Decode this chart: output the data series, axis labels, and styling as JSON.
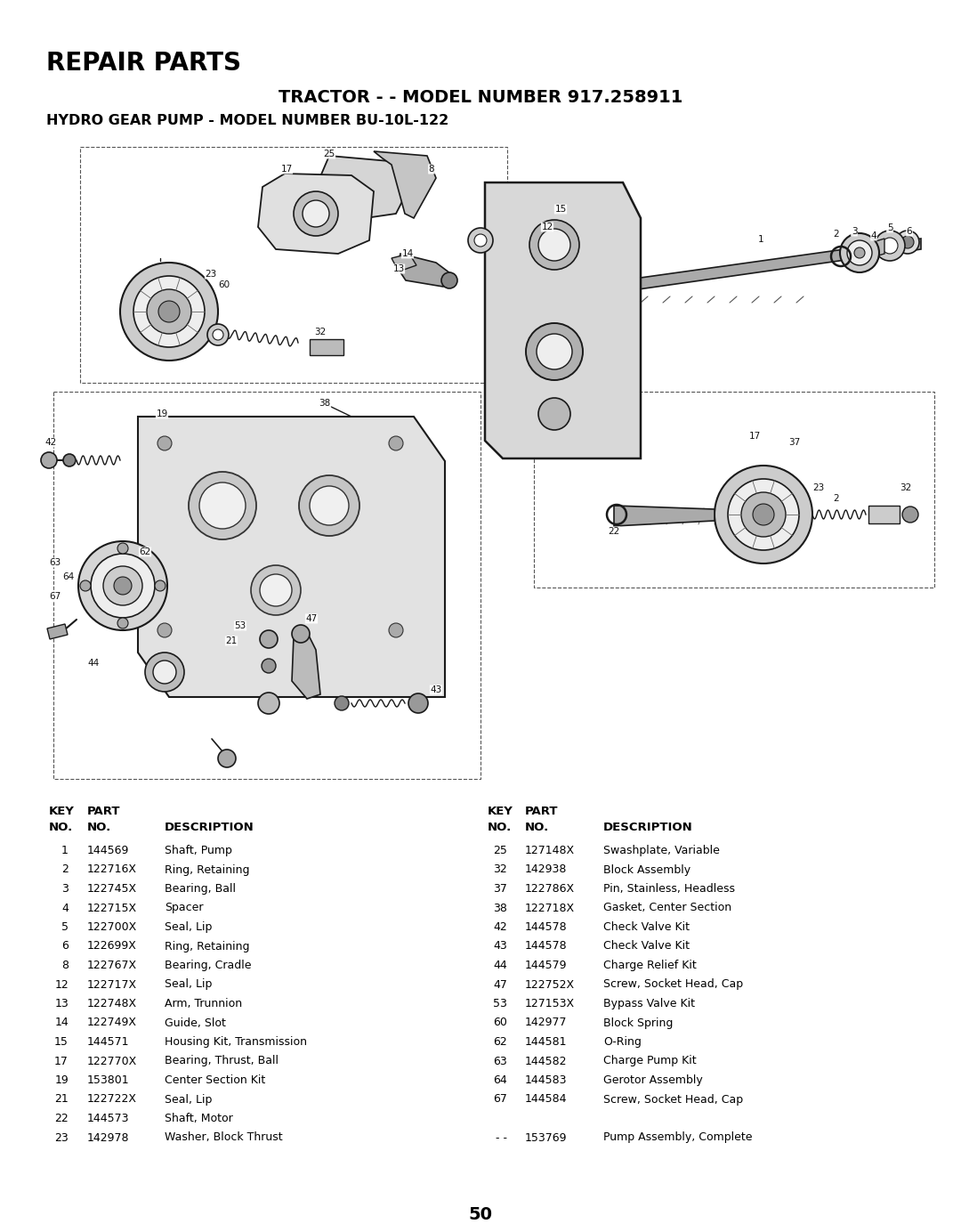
{
  "title_repair": "REPAIR PARTS",
  "title_tractor": "TRACTOR - - MODEL NUMBER 917.258911",
  "title_pump": "HYDRO GEAR PUMP - MODEL NUMBER BU-10L-122",
  "page_number": "50",
  "bg_color": "#ffffff",
  "text_color": "#000000",
  "left_parts": [
    [
      "1",
      "144569",
      "Shaft, Pump"
    ],
    [
      "2",
      "122716X",
      "Ring, Retaining"
    ],
    [
      "3",
      "122745X",
      "Bearing, Ball"
    ],
    [
      "4",
      "122715X",
      "Spacer"
    ],
    [
      "5",
      "122700X",
      "Seal, Lip"
    ],
    [
      "6",
      "122699X",
      "Ring, Retaining"
    ],
    [
      "8",
      "122767X",
      "Bearing, Cradle"
    ],
    [
      "12",
      "122717X",
      "Seal, Lip"
    ],
    [
      "13",
      "122748X",
      "Arm, Trunnion"
    ],
    [
      "14",
      "122749X",
      "Guide, Slot"
    ],
    [
      "15",
      "144571",
      "Housing Kit, Transmission"
    ],
    [
      "17",
      "122770X",
      "Bearing, Thrust, Ball"
    ],
    [
      "19",
      "153801",
      "Center Section Kit"
    ],
    [
      "21",
      "122722X",
      "Seal, Lip"
    ],
    [
      "22",
      "144573",
      "Shaft, Motor"
    ],
    [
      "23",
      "142978",
      "Washer, Block Thrust"
    ]
  ],
  "right_parts": [
    [
      "25",
      "127148X",
      "Swashplate, Variable"
    ],
    [
      "32",
      "142938",
      "Block Assembly"
    ],
    [
      "37",
      "122786X",
      "Pin, Stainless, Headless"
    ],
    [
      "38",
      "122718X",
      "Gasket, Center Section"
    ],
    [
      "42",
      "144578",
      "Check Valve Kit"
    ],
    [
      "43",
      "144578",
      "Check Valve Kit"
    ],
    [
      "44",
      "144579",
      "Charge Relief Kit"
    ],
    [
      "47",
      "122752X",
      "Screw, Socket Head, Cap"
    ],
    [
      "53",
      "127153X",
      "Bypass Valve Kit"
    ],
    [
      "60",
      "142977",
      "Block Spring"
    ],
    [
      "62",
      "144581",
      "O-Ring"
    ],
    [
      "63",
      "144582",
      "Charge Pump Kit"
    ],
    [
      "64",
      "144583",
      "Gerotor Assembly"
    ],
    [
      "67",
      "144584",
      "Screw, Socket Head, Cap"
    ]
  ],
  "bottom_part": [
    "- -",
    "153769",
    "Pump Assembly, Complete"
  ]
}
